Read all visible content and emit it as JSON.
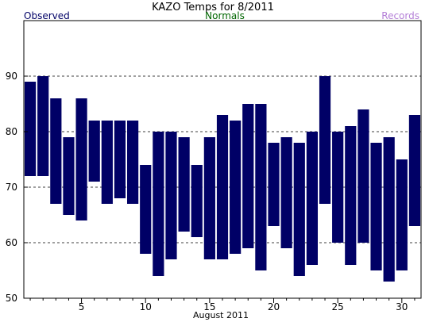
{
  "chart_data": {
    "type": "bar",
    "title": "KAZO Temps for 8/2011",
    "legend": {
      "observed": "Observed",
      "normals": "Normals",
      "records": "Records",
      "placement": "top"
    },
    "xlabel": "August 2011",
    "xlim": [
      0.5,
      31.5
    ],
    "ylim": [
      50,
      100
    ],
    "y_ticks": [
      50,
      60,
      70,
      80,
      90
    ],
    "x_tick_labels": [
      5,
      10,
      15,
      20,
      25,
      30
    ],
    "grid": "dashed horizontal",
    "colors": {
      "observed": "#000066",
      "normals": "#006600",
      "records": "#b47fd7",
      "grid": "#000000"
    },
    "series": [
      {
        "name": "Observed",
        "days": [
          1,
          2,
          3,
          4,
          5,
          6,
          7,
          8,
          9,
          10,
          11,
          12,
          13,
          14,
          15,
          16,
          17,
          18,
          19,
          20,
          21,
          22,
          23,
          24,
          25,
          26,
          27,
          28,
          29,
          30,
          31
        ],
        "high": [
          89,
          90,
          86,
          79,
          86,
          82,
          82,
          82,
          82,
          74,
          80,
          80,
          79,
          74,
          79,
          83,
          82,
          85,
          85,
          78,
          79,
          78,
          80,
          90,
          80,
          81,
          84,
          78,
          79,
          75,
          83
        ],
        "low": [
          72,
          72,
          67,
          65,
          64,
          71,
          67,
          68,
          67,
          58,
          54,
          57,
          62,
          61,
          57,
          57,
          58,
          59,
          55,
          63,
          59,
          54,
          56,
          67,
          60,
          56,
          60,
          55,
          53,
          55,
          63
        ]
      }
    ]
  }
}
